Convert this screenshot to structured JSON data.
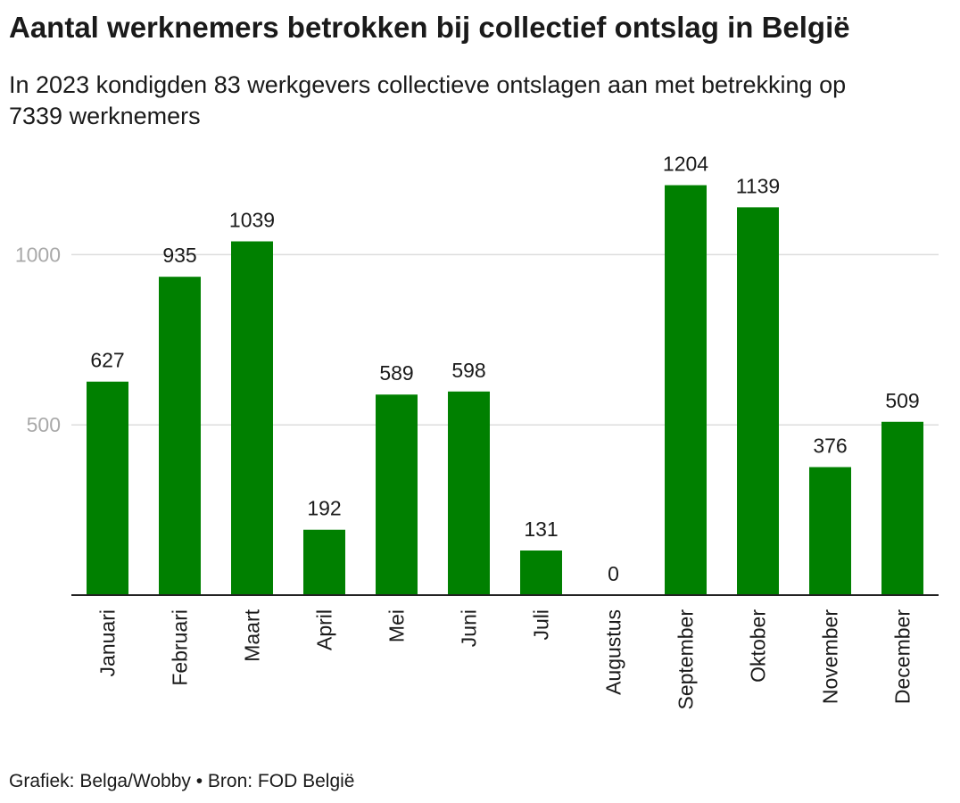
{
  "title": "Aantal werknemers betrokken bij collectief ontslag in België",
  "subtitle": "In 2023 kondigden 83 werkgevers collectieve ontslagen aan met betrekking op 7339 werknemers",
  "footer": "Grafiek: Belga/Wobby • Bron: FOD België",
  "colors": {
    "bar": "#008000",
    "grid": "#dddddd",
    "axis": "#222222",
    "tick": "#a9a9a9"
  },
  "chart_data": {
    "type": "bar",
    "title": "Aantal werknemers betrokken bij collectief ontslag in België",
    "xlabel": "",
    "ylabel": "",
    "categories": [
      "Januari",
      "Februari",
      "Maart",
      "April",
      "Mei",
      "Juni",
      "Juli",
      "Augustus",
      "September",
      "Oktober",
      "November",
      "December"
    ],
    "values": [
      627,
      935,
      1039,
      192,
      589,
      598,
      131,
      0,
      1204,
      1139,
      376,
      509
    ],
    "ylim": [
      0,
      1250
    ],
    "yticks": [
      500,
      1000
    ],
    "grid": true,
    "legend": "none"
  }
}
